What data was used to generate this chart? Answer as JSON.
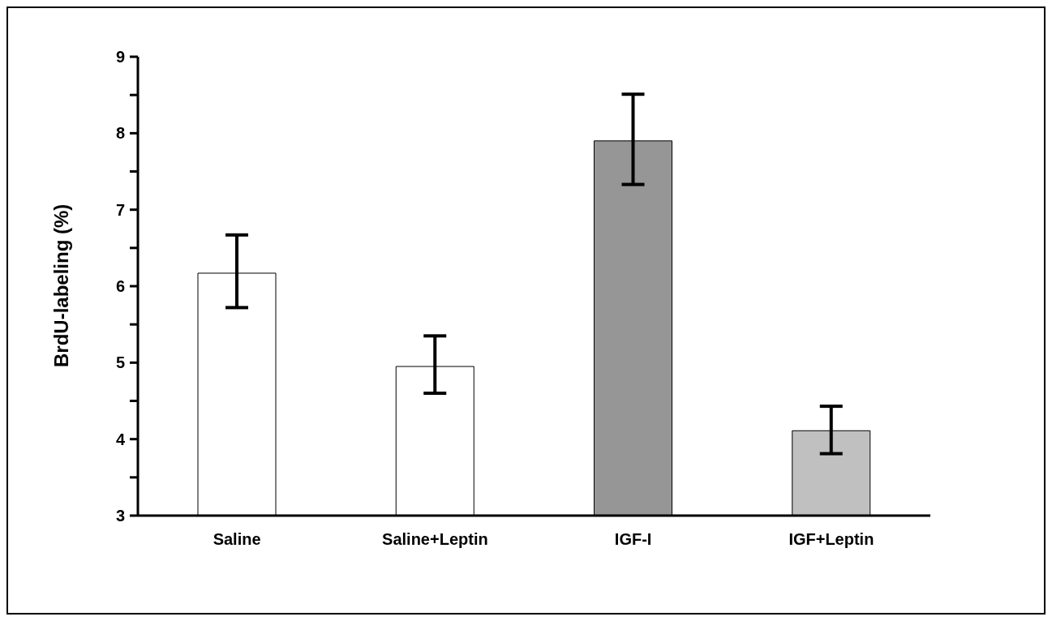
{
  "chart_data": {
    "type": "bar",
    "ylabel": "BrdU-labeling (%)",
    "categories": [
      "Saline",
      "Saline+Leptin",
      "IGF-I",
      "IGF+Leptin"
    ],
    "values": [
      6.17,
      4.95,
      7.9,
      4.11
    ],
    "colors": [
      "#ffffff",
      "#ffffff",
      "#969696",
      "#c0c0c0"
    ],
    "errors": [
      [
        5.72,
        6.67
      ],
      [
        4.6,
        5.35
      ],
      [
        7.33,
        8.51
      ],
      [
        3.81,
        4.43
      ]
    ],
    "ylim": [
      3,
      9
    ],
    "yticks": [
      3,
      {
        "value": 3.5,
        "label": null
      },
      4,
      {
        "value": 4.5,
        "label": null
      },
      5,
      {
        "value": 5.5,
        "label": null
      },
      6,
      {
        "value": 6.5,
        "label": null
      },
      7,
      {
        "value": 7.5,
        "label": null
      },
      8,
      {
        "value": 8.5,
        "label": null
      },
      9
    ],
    "grid": false,
    "legend": false
  }
}
